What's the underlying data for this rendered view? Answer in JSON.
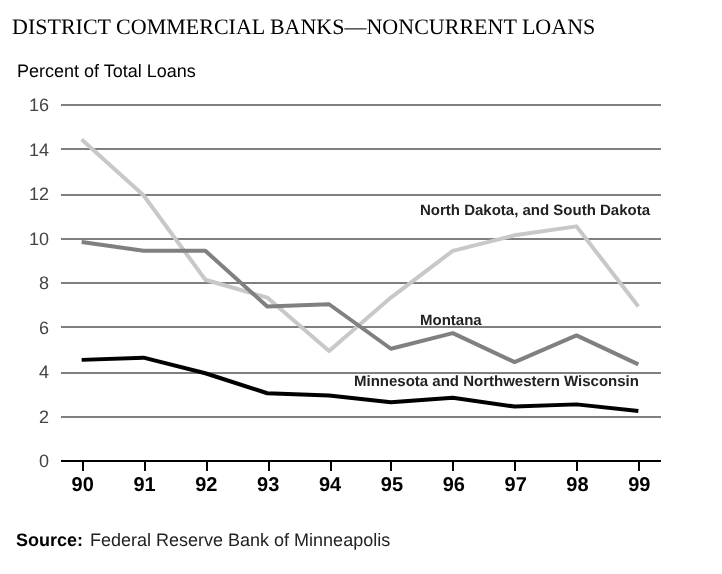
{
  "chart_data": {
    "type": "line",
    "title": "DISTRICT COMMERCIAL BANKS—NONCURRENT LOANS",
    "ylabel": "Percent of Total Loans",
    "categories": [
      "90",
      "91",
      "92",
      "93",
      "94",
      "95",
      "96",
      "97",
      "98",
      "99"
    ],
    "series": [
      {
        "name": "North Dakota, and South Dakota",
        "color": "#c8c8c8",
        "values": [
          14.4,
          11.9,
          8.1,
          7.3,
          4.9,
          7.3,
          9.4,
          10.1,
          10.5,
          6.9
        ]
      },
      {
        "name": "Montana",
        "color": "#808080",
        "values": [
          9.8,
          9.4,
          9.4,
          6.9,
          7.0,
          5.0,
          5.7,
          4.4,
          5.6,
          4.3
        ]
      },
      {
        "name": "Minnesota and Northwestern Wisconsin",
        "color": "#000000",
        "values": [
          4.5,
          4.6,
          3.9,
          3.0,
          2.9,
          2.6,
          2.8,
          2.4,
          2.5,
          2.2
        ]
      }
    ],
    "ylim": [
      0,
      16
    ],
    "yticks": [
      0,
      2,
      4,
      6,
      8,
      10,
      12,
      14,
      16
    ],
    "grid": "y",
    "marker": "none",
    "line_style": "solid",
    "annotations": [
      "Source: Federal Reserve Bank of Minneapolis"
    ]
  }
}
